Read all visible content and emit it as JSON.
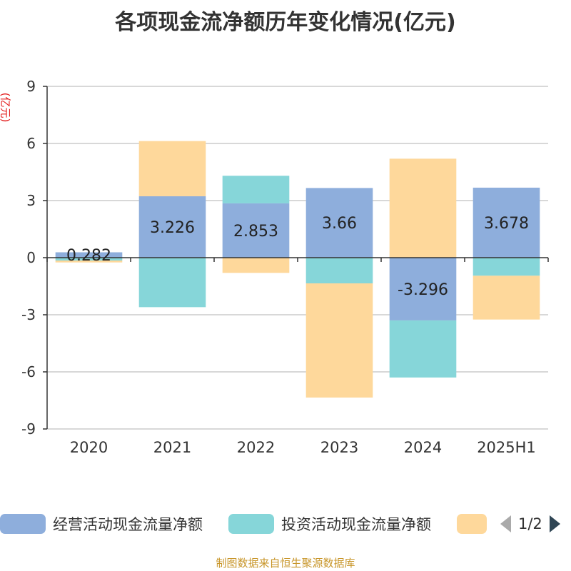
{
  "chart_data": {
    "type": "bar",
    "stacked": true,
    "title": "各项现金流净额历年变化情况(亿元)",
    "ylabel": "(亿元)",
    "categories": [
      "2020",
      "2021",
      "2022",
      "2023",
      "2024",
      "2025H1"
    ],
    "ylim": [
      -9,
      9
    ],
    "yticks": [
      9,
      6,
      3,
      0,
      -3,
      -6,
      -9
    ],
    "grid": true,
    "series": [
      {
        "name": "经营活动现金流量净额",
        "color": "#8eaedc",
        "values": [
          0.282,
          3.226,
          2.853,
          3.66,
          -3.296,
          3.678
        ],
        "data_labels": [
          "0.282",
          "3.226",
          "2.853",
          "3.66",
          "-3.296",
          "3.678"
        ]
      },
      {
        "name": "投资活动现金流量净额",
        "color": "#86d6d9",
        "values": [
          -0.15,
          -2.6,
          1.45,
          -1.35,
          -3.0,
          -0.95
        ]
      },
      {
        "name": "",
        "color": "#fed89b",
        "values": [
          -0.1,
          2.9,
          -0.8,
          -6.0,
          5.2,
          -2.3
        ]
      }
    ],
    "legend_position": "bottom"
  },
  "legend": {
    "page_indicator": "1/2"
  },
  "source": "制图数据来自恒生聚源数据库"
}
